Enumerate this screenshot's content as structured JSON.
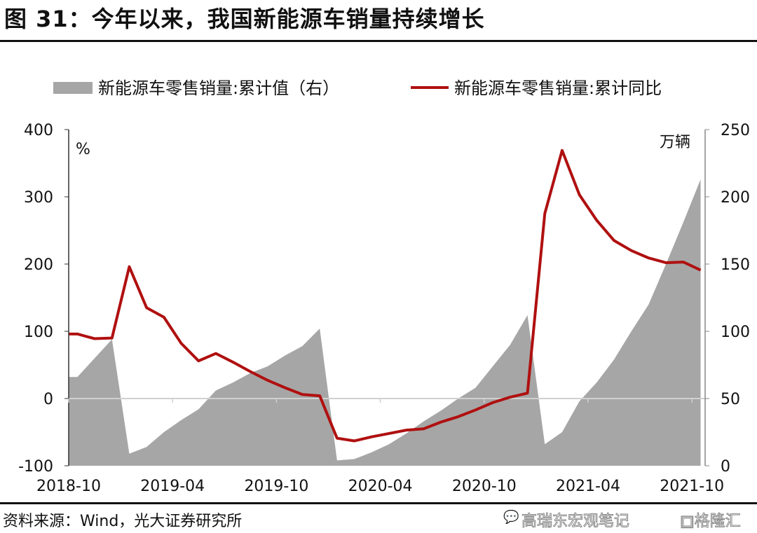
{
  "title": "图 31：今年以来，我国新能源车销量持续增长",
  "source": "资料来源：Wind，光大证券研究所",
  "watermark": {
    "text": "高瑞东宏观笔记",
    "logo": "格隆汇"
  },
  "chart_data": {
    "type": "line+area",
    "legend_position": "top",
    "left_axis": {
      "unit": "%",
      "ylim": [
        -100,
        400
      ],
      "ticks": [
        -100,
        0,
        100,
        200,
        300,
        400
      ]
    },
    "right_axis": {
      "unit": "万辆",
      "ylim": [
        0,
        250
      ],
      "ticks": [
        0,
        50,
        100,
        150,
        200,
        250
      ]
    },
    "x_tick_labels": [
      "2018-10",
      "2019-04",
      "2019-10",
      "2020-04",
      "2020-10",
      "2021-04",
      "2021-10"
    ],
    "months": [
      "2018-10",
      "2018-11",
      "2018-12",
      "2019-01",
      "2019-02",
      "2019-03",
      "2019-04",
      "2019-05",
      "2019-06",
      "2019-07",
      "2019-08",
      "2019-09",
      "2019-10",
      "2019-11",
      "2019-12",
      "2020-01",
      "2020-02",
      "2020-03",
      "2020-04",
      "2020-05",
      "2020-06",
      "2020-07",
      "2020-08",
      "2020-09",
      "2020-10",
      "2020-11",
      "2020-12",
      "2021-01",
      "2021-02",
      "2021-03",
      "2021-04",
      "2021-05",
      "2021-06",
      "2021-07",
      "2021-08",
      "2021-09",
      "2021-10"
    ],
    "series": [
      {
        "name": "新能源车零售销量:累计值（右）",
        "type": "area",
        "axis": "right",
        "color": "#a6a6a6",
        "values": [
          66,
          80,
          94,
          9,
          14,
          25,
          34,
          42,
          56,
          62,
          69,
          74,
          82,
          89,
          102,
          4,
          5,
          10,
          16,
          24,
          33,
          41,
          50,
          58,
          74,
          90,
          112,
          16,
          25,
          48,
          62,
          79,
          100,
          120,
          150,
          181,
          213
        ]
      },
      {
        "name": "新能源车零售销量:累计同比",
        "type": "line",
        "axis": "left",
        "color": "#b01010",
        "values": [
          96,
          89,
          90,
          196,
          135,
          121,
          82,
          56,
          67,
          54,
          40,
          27,
          16,
          6,
          4,
          -59,
          -63,
          -57,
          -52,
          -47,
          -45,
          -35,
          -27,
          -17,
          -6,
          2,
          8,
          275,
          369,
          303,
          265,
          235,
          220,
          209,
          202,
          203,
          191
        ]
      }
    ]
  }
}
